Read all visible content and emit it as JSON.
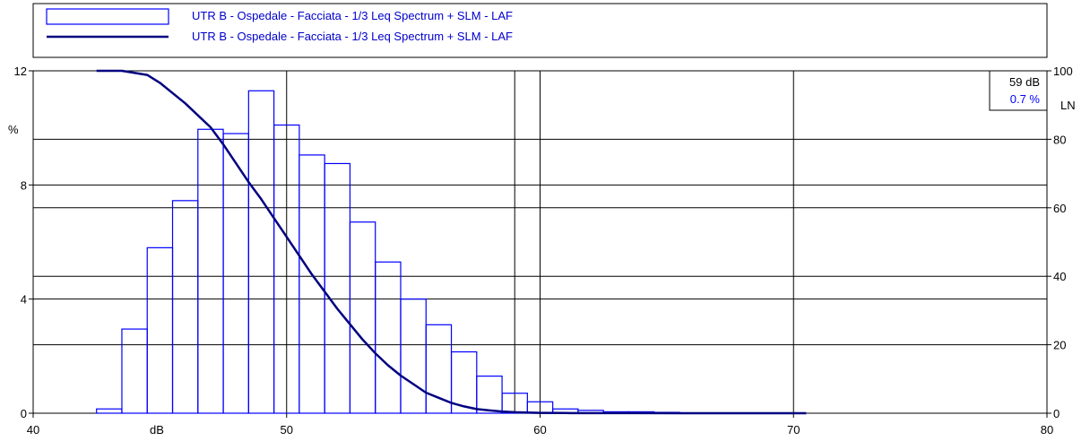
{
  "colors": {
    "bars": "#0000ff",
    "curve": "#000080",
    "legend_text": "#0000cc"
  },
  "legend": {
    "items": [
      {
        "swatch": "bar",
        "label": "UTR B - Ospedale - Facciata - 1/3 Leq Spectrum + SLM - LAF"
      },
      {
        "swatch": "line",
        "label": "UTR B - Ospedale - Facciata - 1/3 Leq Spectrum + SLM - LAF"
      }
    ]
  },
  "cursor": {
    "db": "59 dB",
    "pct": "0.7 %"
  },
  "chart_data": {
    "type": "bar",
    "xlabel": "dB",
    "ylabel": "%",
    "y2label": "LN",
    "xlim": [
      40,
      80
    ],
    "ylim": [
      0,
      12
    ],
    "y2lim": [
      0,
      100
    ],
    "xticks": [
      40,
      50,
      60,
      70,
      80
    ],
    "xtick_labels": [
      "40",
      "50",
      "60",
      "70",
      "80"
    ],
    "yticks": [
      0,
      4,
      8,
      12
    ],
    "ytick_labels": [
      "0",
      "4",
      "8",
      "12"
    ],
    "y2ticks": [
      0,
      20,
      40,
      60,
      80,
      100
    ],
    "y2tick_labels": [
      "0",
      "20",
      "40",
      "60",
      "80",
      "100"
    ],
    "grid": true,
    "bin_width": 1,
    "bin_starts": [
      42.5,
      43.5,
      44.5,
      45.5,
      46.5,
      47.5,
      48.5,
      49.5,
      50.5,
      51.5,
      52.5,
      53.5,
      54.5,
      55.5,
      56.5,
      57.5,
      58.5,
      59.5,
      60.5,
      61.5,
      62.5,
      63.5,
      64.5
    ],
    "series": [
      {
        "name": "UTR B - Ospedale - Facciata - 1/3 Leq Spectrum + SLM - LAF",
        "type": "bar",
        "axis": "left",
        "values": [
          0.15,
          2.95,
          5.8,
          7.45,
          9.95,
          9.8,
          11.3,
          10.1,
          9.05,
          8.75,
          6.7,
          5.3,
          4.0,
          3.1,
          2.15,
          1.3,
          0.7,
          0.4,
          0.15,
          0.1,
          0.05,
          0.05,
          0.03
        ]
      },
      {
        "name": "UTR B - Ospedale - Facciata - 1/3 Leq Spectrum + SLM - LAF",
        "type": "line",
        "axis": "right",
        "x": [
          42.5,
          43.5,
          44.5,
          45.0,
          45.5,
          46.0,
          46.5,
          47.0,
          47.5,
          48.0,
          48.5,
          49.0,
          49.5,
          50.0,
          50.5,
          51.0,
          51.5,
          52.0,
          52.5,
          53.0,
          53.5,
          54.0,
          54.5,
          55.0,
          55.5,
          56.0,
          56.5,
          57.0,
          57.5,
          58.0,
          58.5,
          59.0,
          59.5,
          60.0,
          61.0,
          62.0,
          64.0,
          67.0,
          70.5
        ],
        "values": [
          100,
          100,
          98.8,
          96.5,
          93.5,
          90.5,
          87.0,
          83.5,
          78.5,
          73.0,
          67.5,
          62.5,
          57.0,
          51.5,
          46.0,
          40.5,
          35.5,
          30.5,
          26.0,
          21.5,
          17.5,
          14.0,
          11.0,
          8.5,
          6.0,
          4.5,
          3.0,
          2.0,
          1.2,
          0.8,
          0.5,
          0.3,
          0.2,
          0.1,
          0.05,
          0.03,
          0.02,
          0.01,
          0
        ]
      }
    ]
  }
}
